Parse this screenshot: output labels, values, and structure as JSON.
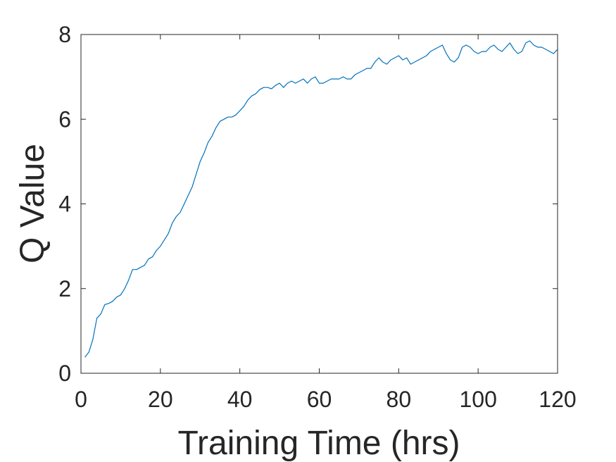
{
  "chart_data": {
    "type": "line",
    "title": "",
    "xlabel": "Training Time (hrs)",
    "ylabel": "Q Value",
    "xlim": [
      0,
      120
    ],
    "ylim": [
      0,
      8
    ],
    "xticks": [
      0,
      20,
      40,
      60,
      80,
      100,
      120
    ],
    "yticks": [
      0,
      2,
      4,
      6,
      8
    ],
    "grid": false,
    "series": [
      {
        "color": "#0072BD",
        "x": [
          1,
          2,
          3,
          4,
          5,
          6,
          7,
          8,
          9,
          10,
          11,
          12,
          13,
          14,
          15,
          16,
          17,
          18,
          19,
          20,
          21,
          22,
          23,
          24,
          25,
          26,
          27,
          28,
          29,
          30,
          31,
          32,
          33,
          34,
          35,
          36,
          37,
          38,
          39,
          40,
          41,
          42,
          43,
          44,
          45,
          46,
          47,
          48,
          49,
          50,
          51,
          52,
          53,
          54,
          55,
          56,
          57,
          58,
          59,
          60,
          61,
          62,
          63,
          64,
          65,
          66,
          67,
          68,
          69,
          70,
          71,
          72,
          73,
          74,
          75,
          76,
          77,
          78,
          79,
          80,
          81,
          82,
          83,
          84,
          85,
          86,
          87,
          88,
          89,
          90,
          91,
          92,
          93,
          94,
          95,
          96,
          97,
          98,
          99,
          100,
          101,
          102,
          103,
          104,
          105,
          106,
          107,
          108,
          109,
          110,
          111,
          112,
          113,
          114,
          115,
          116,
          117,
          118,
          119,
          120
        ],
        "y": [
          0.38,
          0.5,
          0.8,
          1.3,
          1.4,
          1.62,
          1.65,
          1.7,
          1.8,
          1.85,
          2.0,
          2.2,
          2.45,
          2.45,
          2.5,
          2.55,
          2.7,
          2.75,
          2.9,
          3.0,
          3.15,
          3.3,
          3.55,
          3.7,
          3.8,
          4.0,
          4.2,
          4.4,
          4.7,
          5.0,
          5.2,
          5.45,
          5.6,
          5.8,
          5.95,
          6.0,
          6.05,
          6.05,
          6.1,
          6.2,
          6.3,
          6.45,
          6.55,
          6.6,
          6.7,
          6.75,
          6.75,
          6.72,
          6.8,
          6.85,
          6.75,
          6.85,
          6.9,
          6.85,
          6.9,
          6.95,
          6.85,
          6.95,
          7.0,
          6.85,
          6.85,
          6.9,
          6.95,
          6.95,
          6.95,
          7.0,
          6.95,
          6.95,
          7.05,
          7.1,
          7.15,
          7.2,
          7.2,
          7.35,
          7.45,
          7.35,
          7.3,
          7.4,
          7.45,
          7.5,
          7.4,
          7.45,
          7.3,
          7.35,
          7.4,
          7.45,
          7.5,
          7.6,
          7.65,
          7.7,
          7.75,
          7.55,
          7.4,
          7.35,
          7.45,
          7.7,
          7.75,
          7.7,
          7.6,
          7.55,
          7.6,
          7.6,
          7.7,
          7.75,
          7.65,
          7.6,
          7.7,
          7.8,
          7.65,
          7.55,
          7.6,
          7.8,
          7.85,
          7.75,
          7.7,
          7.7,
          7.65,
          7.6,
          7.55,
          7.65
        ]
      }
    ]
  }
}
